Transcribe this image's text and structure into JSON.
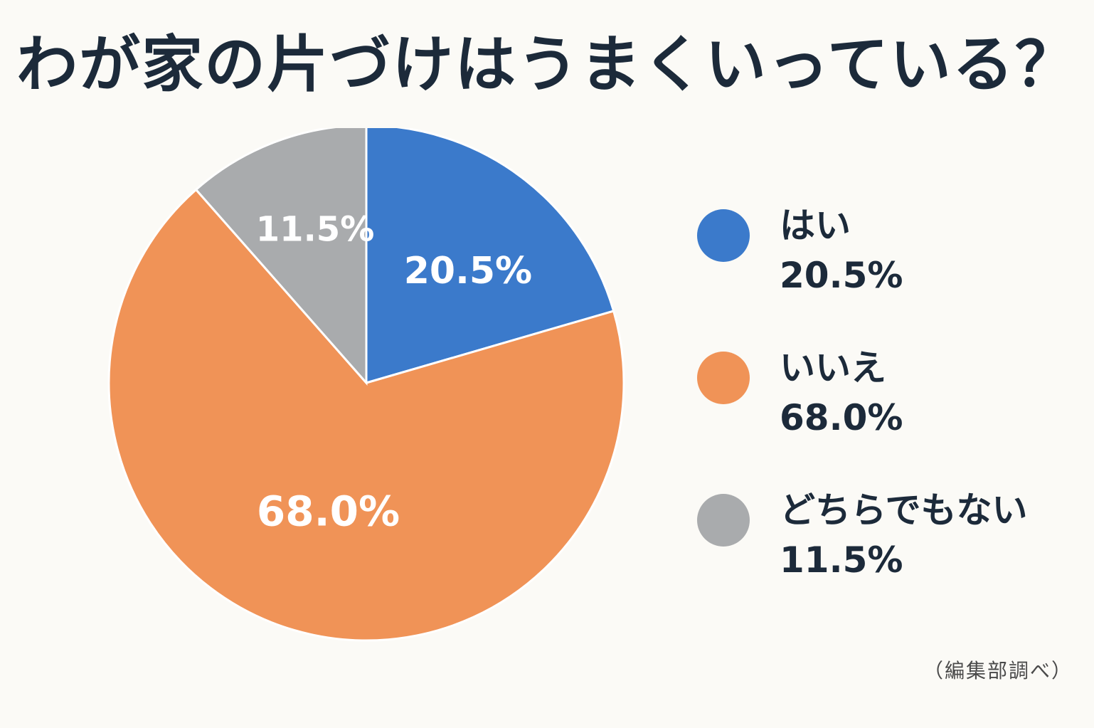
{
  "chart_data": {
    "type": "pie",
    "title": "わが家の片づけはうまくいっている？",
    "categories": [
      "はい",
      "いいえ",
      "どちらでもない"
    ],
    "values": [
      20.5,
      68.0,
      11.5
    ],
    "value_labels": [
      "20.5%",
      "68.0%",
      "11.5%"
    ],
    "colors": [
      "#3b7acb",
      "#f09357",
      "#a9abad"
    ],
    "start": "12 o'clock, clockwise",
    "legend_position": "right"
  },
  "source": "（編集部調べ）"
}
